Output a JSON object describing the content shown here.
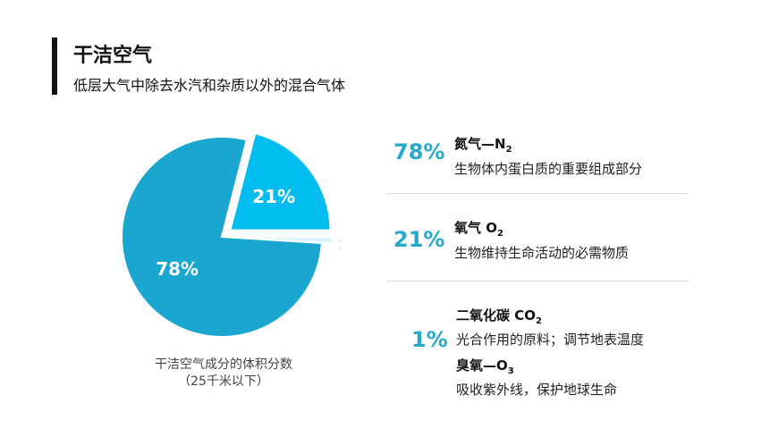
{
  "header": {
    "title": "干洁空气",
    "subtitle": "低层大气中除去水汽和杂质以外的混合气体"
  },
  "chart_data": {
    "type": "pie",
    "slices": [
      {
        "label": "78%",
        "value": 78,
        "color": "#1aa6cf"
      },
      {
        "label": "21%",
        "value": 21,
        "color": "#00bcef"
      },
      {
        "label": "1%",
        "value": 1,
        "color": "#d9f3fb"
      }
    ],
    "caption_line1": "干洁空气成分的体积分数",
    "caption_line2": "（25千米以下）"
  },
  "components": [
    {
      "pct": "78%",
      "name": "氮气—N",
      "sub": "2",
      "desc": "生物体内蛋白质的重要组成部分"
    },
    {
      "pct": "21%",
      "name": "氧气  O",
      "sub": "2",
      "desc": "生物维持生命活动的必需物质"
    },
    {
      "pct": "1%",
      "name": "二氧化碳  CO",
      "sub": "2",
      "desc": "光合作用的原料；调节地表温度",
      "name2": "臭氧—O",
      "sub2": "3",
      "desc2": "吸收紫外线，保护地球生命"
    }
  ],
  "colors": {
    "accent": "#27a9c7"
  }
}
